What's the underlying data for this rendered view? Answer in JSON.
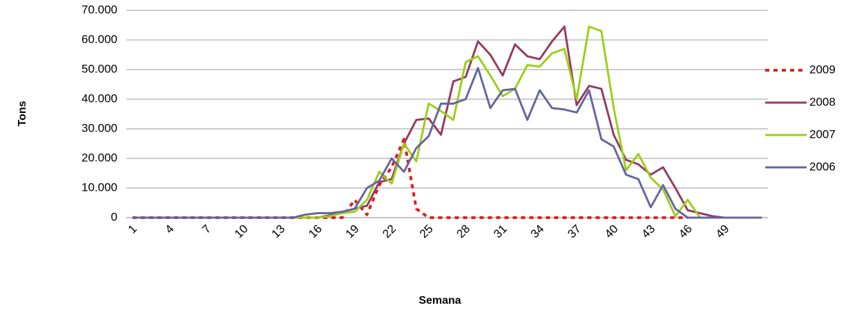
{
  "chart_data": {
    "type": "line",
    "x_label": "Semana",
    "y_label": "Tons",
    "categories": [
      "1",
      null,
      null,
      "4",
      null,
      null,
      "7",
      null,
      null,
      "10",
      null,
      null,
      "13",
      null,
      null,
      "16",
      null,
      null,
      "19",
      null,
      null,
      "22",
      null,
      null,
      "25",
      null,
      null,
      "28",
      null,
      null,
      "31",
      null,
      null,
      "34",
      null,
      null,
      "37",
      null,
      null,
      "40",
      null,
      null,
      "43",
      null,
      null,
      "46",
      null,
      null,
      "49",
      null,
      null,
      null
    ],
    "ylim": [
      0,
      70000
    ],
    "yticks": [
      0,
      {
        "value": 10000,
        "label": "10.000"
      },
      {
        "value": 20000,
        "label": "20.000"
      },
      {
        "value": 30000,
        "label": "30.000"
      },
      {
        "value": 40000,
        "label": "40.000"
      },
      {
        "value": 50000,
        "label": "50.000"
      },
      {
        "value": 60000,
        "label": "60.000"
      },
      {
        "value": 70000,
        "label": "70.000"
      }
    ],
    "grid": true,
    "legend": "right",
    "series": [
      {
        "name": "2009",
        "color": "#e0201c",
        "style": "dashed",
        "values": [
          0,
          0,
          0,
          0,
          0,
          0,
          0,
          0,
          0,
          0,
          0,
          0,
          0,
          0,
          0,
          0,
          0,
          0,
          6000,
          1000,
          11000,
          17000,
          26500,
          3000,
          0,
          0,
          0,
          0,
          0,
          0,
          0,
          0,
          0,
          0,
          0,
          0,
          0,
          0,
          0,
          0,
          0,
          0,
          0,
          0,
          0,
          0,
          null,
          null,
          null,
          null,
          null,
          null
        ]
      },
      {
        "name": "2008",
        "color": "#953a62",
        "style": "solid",
        "values": [
          0,
          0,
          0,
          0,
          0,
          0,
          0,
          0,
          0,
          0,
          0,
          0,
          0,
          0,
          0,
          0,
          800,
          2000,
          3000,
          4000,
          12000,
          13000,
          25000,
          33000,
          33500,
          28000,
          46000,
          47500,
          59500,
          55000,
          48000,
          58500,
          54500,
          53500,
          59500,
          64500,
          38000,
          44500,
          43500,
          28000,
          19500,
          18000,
          14500,
          17000,
          10000,
          2500,
          1500,
          500,
          0,
          0,
          0,
          0
        ]
      },
      {
        "name": "2007",
        "color": "#9bcf1a",
        "style": "solid",
        "values": [
          0,
          0,
          0,
          0,
          0,
          0,
          0,
          0,
          0,
          0,
          0,
          0,
          0,
          0,
          0,
          0,
          500,
          1500,
          2000,
          6000,
          15500,
          11500,
          25000,
          19000,
          38500,
          36000,
          33000,
          52500,
          54500,
          48000,
          41000,
          43500,
          51500,
          51000,
          55500,
          57000,
          40000,
          64500,
          63000,
          37000,
          16000,
          21500,
          13500,
          9500,
          500,
          6000,
          0,
          0,
          0,
          0,
          0,
          0
        ]
      },
      {
        "name": "2006",
        "color": "#6666a0",
        "style": "solid",
        "values": [
          0,
          0,
          0,
          0,
          0,
          0,
          0,
          0,
          0,
          0,
          0,
          0,
          0,
          0,
          1000,
          1500,
          1500,
          2000,
          3000,
          10000,
          12500,
          20000,
          15500,
          23500,
          27500,
          38500,
          38500,
          40000,
          50500,
          37000,
          43000,
          43500,
          33000,
          43000,
          37000,
          36500,
          35500,
          43000,
          26500,
          24000,
          14500,
          13000,
          3500,
          11000,
          3000,
          0,
          0,
          0,
          0,
          0,
          0,
          0
        ]
      }
    ]
  }
}
